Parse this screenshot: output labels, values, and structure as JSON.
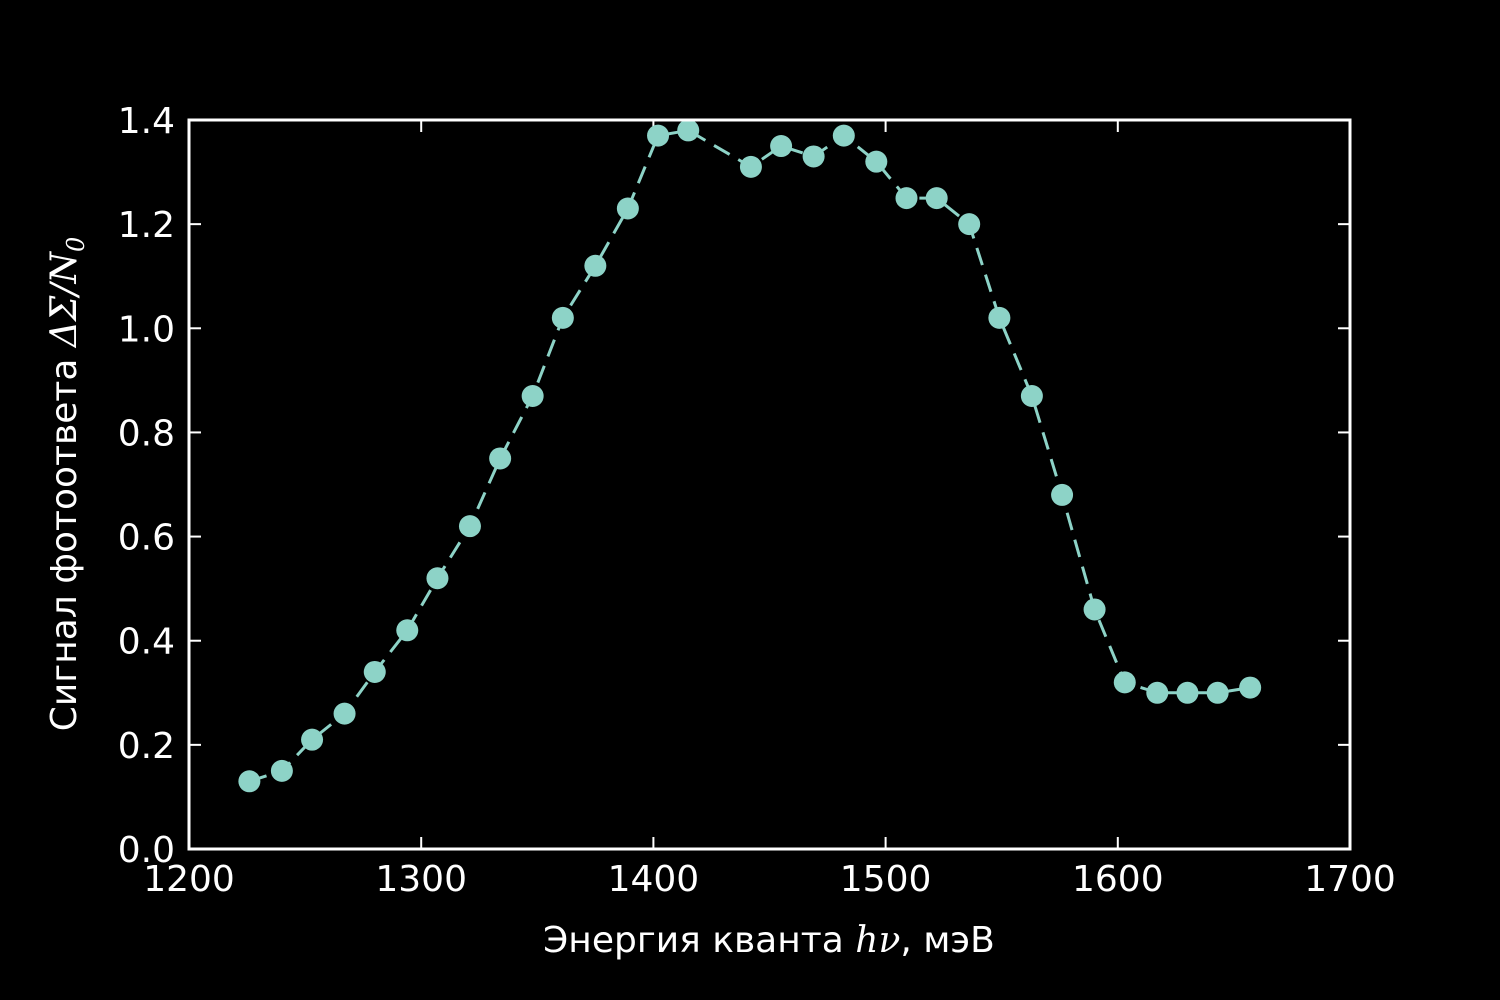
{
  "chart_data": {
    "type": "line",
    "title": "",
    "xlabel": {
      "prefix": "Энергия кванта ",
      "math": "hν",
      "suffix": ", мэВ"
    },
    "ylabel": {
      "prefix": "Сигнал фотоответа ",
      "math": "ΔΣ/N",
      "math_sub": "0"
    },
    "xlim": [
      1200,
      1700
    ],
    "ylim": [
      0.0,
      1.4
    ],
    "xticks": [
      1200,
      1300,
      1400,
      1500,
      1600,
      1700
    ],
    "xtick_labels": [
      "1200",
      "1300",
      "1400",
      "1500",
      "1600",
      "1700"
    ],
    "yticks": [
      0.0,
      0.2,
      0.4,
      0.6,
      0.8,
      1.0,
      1.2,
      1.4
    ],
    "ytick_labels": [
      "0.0",
      "0.2",
      "0.4",
      "0.6",
      "0.8",
      "1.0",
      "1.2",
      "1.4"
    ],
    "grid": false,
    "legend": "none",
    "series": [
      {
        "line_style": "dashed",
        "marker": "circle",
        "color": "#8dd3c7",
        "x": [
          1226,
          1240,
          1253,
          1267,
          1280,
          1294,
          1307,
          1321,
          1334,
          1348,
          1361,
          1375,
          1389,
          1402,
          1415,
          1442,
          1455,
          1469,
          1482,
          1496,
          1509,
          1522,
          1536,
          1549,
          1563,
          1576,
          1590,
          1603,
          1617,
          1630,
          1643,
          1657
        ],
        "y": [
          0.13,
          0.15,
          0.21,
          0.26,
          0.34,
          0.42,
          0.52,
          0.62,
          0.75,
          0.87,
          1.02,
          1.12,
          1.23,
          1.37,
          1.38,
          1.31,
          1.35,
          1.33,
          1.37,
          1.32,
          1.25,
          1.25,
          1.2,
          1.02,
          0.87,
          0.68,
          0.46,
          0.32,
          0.3,
          0.3,
          0.3,
          0.31
        ]
      }
    ]
  },
  "colors": {
    "background": "#000000",
    "axes": "#ffffff",
    "series": "#8dd3c7"
  }
}
